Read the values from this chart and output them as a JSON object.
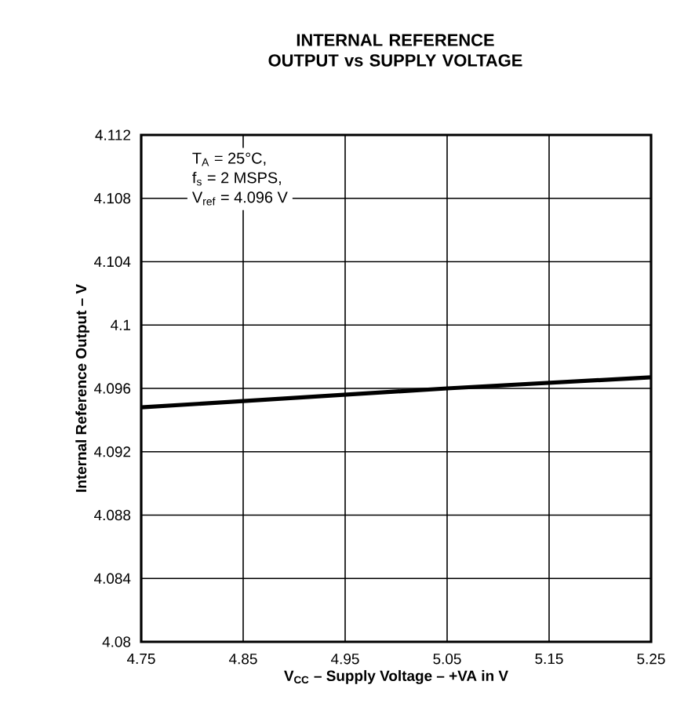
{
  "chart_data": {
    "type": "line",
    "title": "INTERNAL REFERENCE OUTPUT vs SUPPLY VOLTAGE",
    "xlabel": "V$_{CC}$ – Supply Voltage – +VA in V",
    "ylabel": "Internal Reference Output – V",
    "x": [
      4.75,
      5.05,
      5.25
    ],
    "series": [
      {
        "color": "#000000",
        "values": [
          4.0948,
          4.096,
          4.0967
        ]
      }
    ],
    "xlim": [
      4.75,
      5.25
    ],
    "xticks": [
      4.75,
      4.85,
      4.95,
      5.05,
      5.15,
      5.25
    ],
    "ylim": [
      4.08,
      4.112
    ],
    "yticks": [
      4.08,
      4.084,
      4.088,
      4.092,
      4.096,
      {
        "value": 4.1,
        "label": "4.1"
      },
      4.104,
      4.108,
      4.112
    ],
    "grid": true,
    "marker": "none",
    "line_style": "solid",
    "annotations": [
      "T$_{A}$ = 25°C,",
      "f$_{s}$ = 2 MSPS,",
      "V$_{ref}$ = 4.096 V"
    ]
  }
}
